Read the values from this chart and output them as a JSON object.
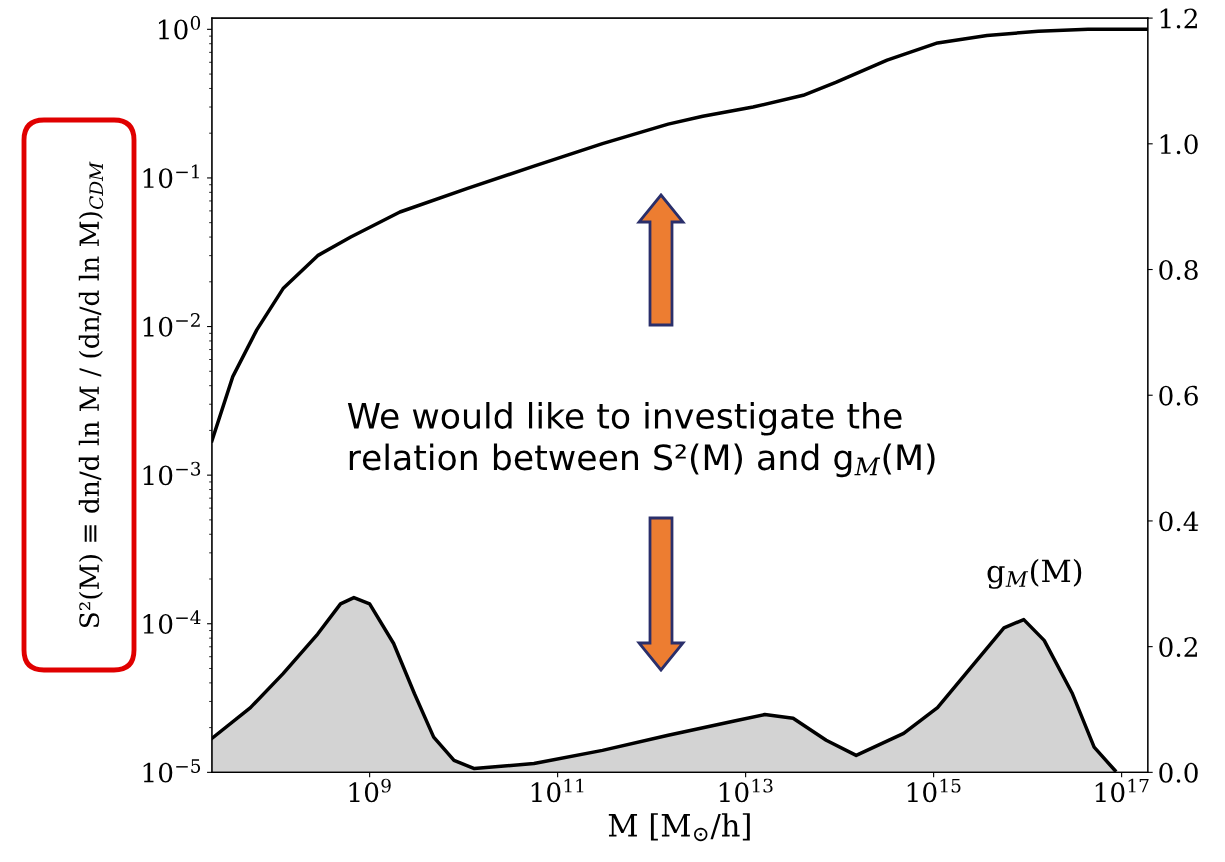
{
  "chart_data": {
    "type": "line",
    "xlabel": "M [M$_{⊙}$/h]",
    "ylabel": "S²(M) ≡ dn/d ln M / (dn/d ln M)$_{CDM}$",
    "annotations": [
      "We would like to investigate the relation between S²(M) and g$_{M}$(M)"
    ],
    "log": "xy",
    "xlim": [
      21000000.0,
      1.9e+17
    ],
    "xticks": [
      {
        "value": 1000000000.0,
        "label": "10$^{9}$"
      },
      {
        "value": 100000000000.0,
        "label": "10$^{11}$"
      },
      {
        "value": 10000000000000.0,
        "label": "10$^{13}$"
      },
      {
        "value": 1000000000000000.0,
        "label": "10$^{15}$"
      },
      {
        "value": 1e+17,
        "label": "10$^{17}$"
      }
    ],
    "ylim": [
      1e-05,
      1.19
    ],
    "yticks": [
      {
        "value": 1e-05,
        "label": "10$^{−5}$"
      },
      {
        "value": 0.0001,
        "label": "10$^{−4}$"
      },
      {
        "value": 0.001,
        "label": "10$^{−3}$"
      },
      {
        "value": 0.01,
        "label": "10$^{−2}$"
      },
      {
        "value": 0.1,
        "label": "10$^{−1}$"
      },
      {
        "value": 1,
        "label": "10$^{0}$"
      }
    ],
    "y2lim": [
      0,
      1.2
    ],
    "y2ticks": [
      {
        "value": 0,
        "label": "0.0"
      },
      {
        "value": 0.2,
        "label": "0.2"
      },
      {
        "value": 0.4,
        "label": "0.4"
      },
      {
        "value": 0.6,
        "label": "0.6"
      },
      {
        "value": 0.8,
        "label": "0.8"
      },
      {
        "value": 1.0,
        "label": "1.0"
      },
      {
        "value": 1.2,
        "label": "1.2"
      }
    ],
    "grid": false,
    "legend": false,
    "series": [
      {
        "color": "#000000",
        "x": [
          21000000.0,
          35000000.0,
          63000000.0,
          120000000.0,
          280000000.0,
          630000000.0,
          2100000000.0,
          11000000000.0,
          56000000000.0,
          300000000000.0,
          1500000000000.0,
          3500000000000.0,
          12000000000000.0,
          41000000000000.0,
          91000000000000.0,
          320000000000000.0,
          1100000000000000.0,
          3700000000000000.0,
          1.3e+16,
          4.4e+16,
          1.9e+17
        ],
        "values": [
          0.0017,
          0.0046,
          0.0095,
          0.018,
          0.03,
          0.04,
          0.059,
          0.085,
          0.12,
          0.17,
          0.23,
          0.26,
          0.3,
          0.36,
          0.44,
          0.62,
          0.81,
          0.91,
          0.97,
          1.0,
          1.0
        ]
      },
      {
        "type": "area",
        "axis": "y2",
        "name": "g$_{M}$(M)",
        "color": "#d3d3d3",
        "x": [
          21000000.0,
          54000000.0,
          120000000.0,
          280000000.0,
          490000000.0,
          680000000.0,
          1000000000.0,
          1800000000.0,
          3000000000.0,
          4800000000.0,
          7900000000.0,
          13000000000.0,
          56000000000.0,
          300000000000.0,
          1500000000000.0,
          7800000000000.0,
          16000000000000.0,
          32000000000000.0,
          72000000000000.0,
          150000000000000.0,
          480000000000000.0,
          1100000000000000.0,
          2500000000000000.0,
          5600000000000000.0,
          9100000000000000.0,
          1.5e+16,
          3e+16,
          5.1e+16,
          8.5e+16
        ],
        "values": [
          0.054,
          0.103,
          0.157,
          0.22,
          0.268,
          0.278,
          0.268,
          0.205,
          0.125,
          0.056,
          0.019,
          0.006,
          0.014,
          0.035,
          0.059,
          0.082,
          0.092,
          0.086,
          0.051,
          0.027,
          0.062,
          0.103,
          0.167,
          0.23,
          0.243,
          0.21,
          0.125,
          0.04,
          0.003
        ]
      }
    ]
  }
}
